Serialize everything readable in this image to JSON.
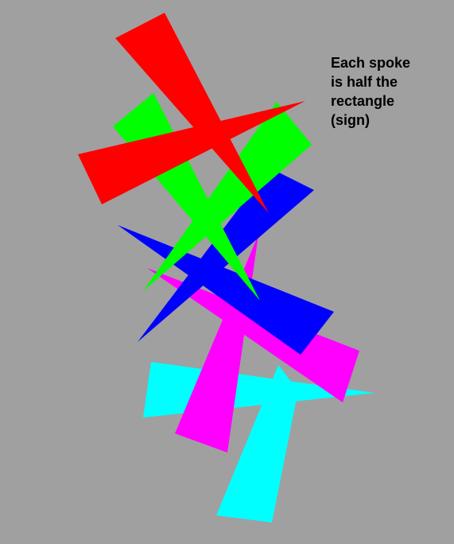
{
  "caption": {
    "lines": [
      "Each spoke",
      "is half the",
      "rectangle",
      "(sign)"
    ]
  },
  "colors": {
    "background": "#a0a0a0",
    "cyan": "#00ffff",
    "magenta": "#ff00ff",
    "blue": "#0000ff",
    "green": "#00ff00",
    "red": "#ff0000",
    "text": "#000000"
  },
  "shapes": [
    {
      "name": "cyan-sign",
      "color_key": "cyan"
    },
    {
      "name": "magenta-sign",
      "color_key": "magenta"
    },
    {
      "name": "blue-sign",
      "color_key": "blue"
    },
    {
      "name": "green-sign",
      "color_key": "green"
    },
    {
      "name": "red-sign",
      "color_key": "red"
    }
  ]
}
